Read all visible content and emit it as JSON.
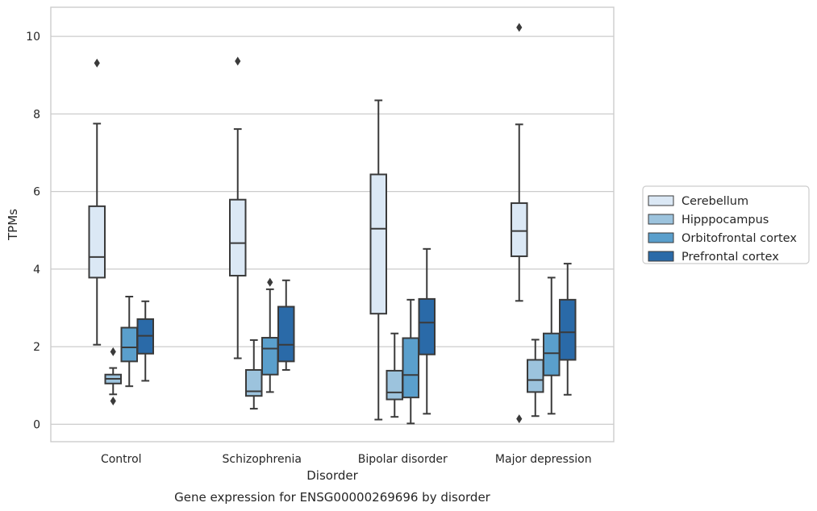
{
  "chart_data": {
    "type": "boxplot",
    "caption": "Gene expression for ENSG00000269696 by disorder",
    "xlabel": "Disorder",
    "ylabel": "TPMs",
    "ylim": [
      -0.45,
      10.75
    ],
    "yticks": [
      0,
      2,
      4,
      6,
      8,
      10
    ],
    "grid": "horizontal",
    "legend_position": "right",
    "categories": [
      "Control",
      "Schizophrenia",
      "Bipolar disorder",
      "Major depression"
    ],
    "series": [
      {
        "name": "Cerebellum",
        "color": "#dbe8f5",
        "boxes": [
          {
            "whislo": 2.05,
            "q1": 3.78,
            "med": 4.31,
            "q3": 5.62,
            "whishi": 7.75,
            "fliers": [
              9.31
            ]
          },
          {
            "whislo": 1.7,
            "q1": 3.83,
            "med": 4.67,
            "q3": 5.79,
            "whishi": 7.61,
            "fliers": [
              9.36
            ]
          },
          {
            "whislo": 0.12,
            "q1": 2.85,
            "med": 5.04,
            "q3": 6.44,
            "whishi": 8.35,
            "fliers": []
          },
          {
            "whislo": 3.18,
            "q1": 4.33,
            "med": 4.98,
            "q3": 5.7,
            "whishi": 7.73,
            "fliers": [
              0.14,
              10.23
            ]
          }
        ]
      },
      {
        "name": "Hipppocampus",
        "color": "#9cc3dd",
        "boxes": [
          {
            "whislo": 0.77,
            "q1": 1.05,
            "med": 1.17,
            "q3": 1.28,
            "whishi": 1.45,
            "fliers": [
              0.6,
              1.87
            ]
          },
          {
            "whislo": 0.4,
            "q1": 0.73,
            "med": 0.85,
            "q3": 1.4,
            "whishi": 2.17,
            "fliers": []
          },
          {
            "whislo": 0.19,
            "q1": 0.64,
            "med": 0.82,
            "q3": 1.38,
            "whishi": 2.34,
            "fliers": []
          },
          {
            "whislo": 0.21,
            "q1": 0.83,
            "med": 1.14,
            "q3": 1.66,
            "whishi": 2.18,
            "fliers": []
          }
        ]
      },
      {
        "name": "Orbitofrontal cortex",
        "color": "#5a9fcc",
        "boxes": [
          {
            "whislo": 0.98,
            "q1": 1.62,
            "med": 1.98,
            "q3": 2.49,
            "whishi": 3.29,
            "fliers": []
          },
          {
            "whislo": 0.83,
            "q1": 1.28,
            "med": 1.95,
            "q3": 2.23,
            "whishi": 3.48,
            "fliers": [
              3.66
            ]
          },
          {
            "whislo": 0.02,
            "q1": 0.69,
            "med": 1.27,
            "q3": 2.22,
            "whishi": 3.21,
            "fliers": []
          },
          {
            "whislo": 0.27,
            "q1": 1.26,
            "med": 1.83,
            "q3": 2.34,
            "whishi": 3.78,
            "fliers": []
          }
        ]
      },
      {
        "name": "Prefrontal cortex",
        "color": "#2a6aa8",
        "boxes": [
          {
            "whislo": 1.12,
            "q1": 1.82,
            "med": 2.28,
            "q3": 2.71,
            "whishi": 3.17,
            "fliers": []
          },
          {
            "whislo": 1.4,
            "q1": 1.62,
            "med": 2.05,
            "q3": 3.03,
            "whishi": 3.71,
            "fliers": []
          },
          {
            "whislo": 0.27,
            "q1": 1.8,
            "med": 2.62,
            "q3": 3.23,
            "whishi": 4.52,
            "fliers": []
          },
          {
            "whislo": 0.76,
            "q1": 1.66,
            "med": 2.37,
            "q3": 3.21,
            "whishi": 4.14,
            "fliers": []
          }
        ]
      }
    ]
  }
}
